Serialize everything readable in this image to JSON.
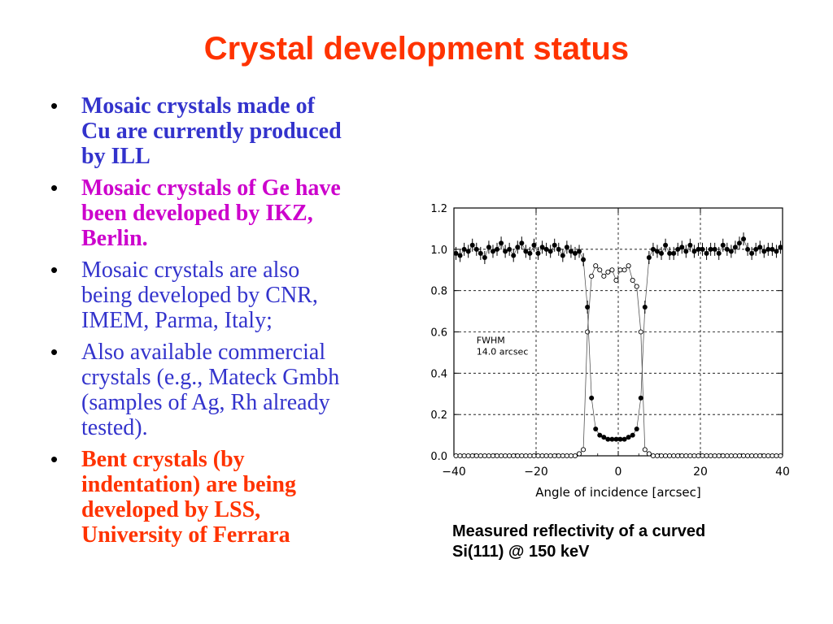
{
  "slide": {
    "title": "Crystal development status",
    "caption_line1": "Measured reflectivity of a curved",
    "caption_line2": "Si(111) @ 150 keV"
  },
  "bullets": [
    {
      "lines": [
        "Mosaic crystals made of",
        "Cu are currently produced",
        "by ILL"
      ],
      "color": "#3333cc",
      "bold": true
    },
    {
      "lines": [
        "Mosaic crystals of Ge have",
        "been  developed by IKZ,",
        "Berlin."
      ],
      "color": "#cc00cc",
      "bold": true
    },
    {
      "lines": [
        "Mosaic crystals are also",
        "being developed by CNR,",
        "IMEM, Parma, Italy;"
      ],
      "color": "#3333cc",
      "bold": false
    },
    {
      "lines": [
        "Also available commercial",
        "crystals (e.g., Mateck Gmbh",
        "(samples of Ag, Rh already",
        "tested)."
      ],
      "color": "#3333cc",
      "bold": false
    },
    {
      "lines": [
        "Bent crystals (by",
        "indentation) are being",
        "developed by LSS,",
        "University of Ferrara"
      ],
      "color": "#ff3300",
      "bold": true
    }
  ],
  "chart_data": {
    "type": "scatter",
    "xlabel": "Angle of incidence [arcsec]",
    "ylabel": "",
    "xlim": [
      -40,
      40
    ],
    "ylim": [
      0,
      1.2
    ],
    "xticks": [
      "−40",
      "−20",
      "0",
      "20",
      "40"
    ],
    "xtick_values": [
      -40,
      -20,
      0,
      20,
      40
    ],
    "yticks": [
      "0.0",
      "0.2",
      "0.4",
      "0.6",
      "0.8",
      "1.0",
      "1.2"
    ],
    "ytick_values": [
      0,
      0.2,
      0.4,
      0.6,
      0.8,
      1.0,
      1.2
    ],
    "grid": true,
    "annotation_line1": "FWHM",
    "annotation_line2": "14.0 arcsec",
    "series": [
      {
        "marker": "filled-circle-with-errorbars",
        "x": [
          -39.5,
          -38.5,
          -37.5,
          -36.5,
          -35.5,
          -34.5,
          -33.5,
          -32.5,
          -31.5,
          -30.5,
          -29.5,
          -28.5,
          -27.5,
          -26.5,
          -25.5,
          -24.5,
          -23.5,
          -22.5,
          -21.5,
          -20.5,
          -19.5,
          -18.5,
          -17.5,
          -16.5,
          -15.5,
          -14.5,
          -13.5,
          -12.5,
          -11.5,
          -10.5,
          -9.5,
          -8.5,
          -7.5,
          -6.5,
          -5.5,
          -4.5,
          -3.5,
          -2.5,
          -1.5,
          -0.5,
          0.5,
          1.5,
          2.5,
          3.5,
          4.5,
          5.5,
          6.5,
          7.5,
          8.5,
          9.5,
          10.5,
          11.5,
          12.5,
          13.5,
          14.5,
          15.5,
          16.5,
          17.5,
          18.5,
          19.5,
          20.5,
          21.5,
          22.5,
          23.5,
          24.5,
          25.5,
          26.5,
          27.5,
          28.5,
          29.5,
          30.5,
          31.5,
          32.5,
          33.5,
          34.5,
          35.5,
          36.5,
          37.5,
          38.5,
          39.5
        ],
        "y": [
          0.98,
          0.97,
          1.0,
          0.99,
          1.02,
          1.0,
          0.98,
          0.96,
          1.01,
          0.99,
          1.0,
          1.03,
          0.99,
          1.0,
          0.97,
          1.01,
          1.03,
          0.99,
          0.98,
          1.02,
          0.98,
          1.01,
          1.0,
          0.99,
          1.02,
          1.0,
          0.97,
          1.01,
          0.99,
          0.98,
          0.99,
          0.95,
          0.72,
          0.28,
          0.13,
          0.1,
          0.09,
          0.08,
          0.08,
          0.08,
          0.08,
          0.08,
          0.09,
          0.1,
          0.13,
          0.28,
          0.72,
          0.96,
          1.0,
          0.99,
          0.98,
          1.02,
          0.98,
          0.98,
          1.0,
          1.01,
          0.99,
          1.02,
          0.99,
          1.0,
          1.0,
          0.98,
          1.0,
          1.0,
          0.98,
          1.02,
          1.0,
          0.99,
          1.01,
          1.03,
          1.05,
          1.0,
          0.98,
          1.0,
          1.01,
          0.99,
          1.0,
          1.0,
          0.99,
          1.01
        ]
      },
      {
        "marker": "open-circle",
        "x": [
          -39.5,
          -38.5,
          -37.5,
          -36.5,
          -35.5,
          -34.5,
          -33.5,
          -32.5,
          -31.5,
          -30.5,
          -29.5,
          -28.5,
          -27.5,
          -26.5,
          -25.5,
          -24.5,
          -23.5,
          -22.5,
          -21.5,
          -20.5,
          -19.5,
          -18.5,
          -17.5,
          -16.5,
          -15.5,
          -14.5,
          -13.5,
          -12.5,
          -11.5,
          -10.5,
          -9.5,
          -8.5,
          -7.5,
          -6.5,
          -5.5,
          -4.5,
          -3.5,
          -2.5,
          -1.5,
          -0.5,
          0.5,
          1.5,
          2.5,
          3.5,
          4.5,
          5.5,
          6.5,
          7.5,
          8.5,
          9.5,
          10.5,
          11.5,
          12.5,
          13.5,
          14.5,
          15.5,
          16.5,
          17.5,
          18.5,
          19.5,
          20.5,
          21.5,
          22.5,
          23.5,
          24.5,
          25.5,
          26.5,
          27.5,
          28.5,
          29.5,
          30.5,
          31.5,
          32.5,
          33.5,
          34.5,
          35.5,
          36.5,
          37.5,
          38.5,
          39.5
        ],
        "y": [
          0,
          0,
          0,
          0,
          0,
          0,
          0,
          0,
          0,
          0,
          0,
          0,
          0,
          0,
          0,
          0,
          0,
          0,
          0,
          0,
          0,
          0,
          0,
          0,
          0,
          0,
          0,
          0,
          0,
          0,
          0.01,
          0.03,
          0.6,
          0.87,
          0.92,
          0.9,
          0.87,
          0.89,
          0.9,
          0.85,
          0.9,
          0.9,
          0.92,
          0.85,
          0.82,
          0.6,
          0.03,
          0.01,
          0,
          0,
          0,
          0,
          0,
          0,
          0,
          0,
          0,
          0,
          0,
          0,
          0,
          0,
          0,
          0,
          0,
          0,
          0,
          0,
          0,
          0,
          0,
          0,
          0,
          0,
          0,
          0,
          0,
          0,
          0,
          0
        ]
      }
    ]
  }
}
